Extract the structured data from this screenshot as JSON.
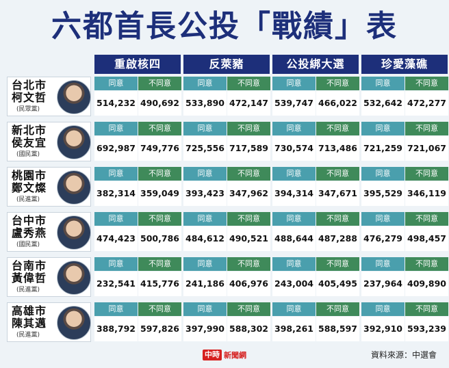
{
  "title": "六都首長公投「戰績」表",
  "topics": [
    "重啟核四",
    "反萊豬",
    "公投綁大選",
    "珍愛藻礁"
  ],
  "labels": {
    "agree": "同意",
    "disagree": "不同意"
  },
  "leaders": [
    {
      "city": "台北市",
      "name": "柯文哲",
      "party": "(民眾黨)",
      "avatar_icon": "portrait-icon"
    },
    {
      "city": "新北市",
      "name": "侯友宜",
      "party": "(國民黨)",
      "avatar_icon": "portrait-icon"
    },
    {
      "city": "桃園市",
      "name": "鄭文燦",
      "party": "(民進黨)",
      "avatar_icon": "portrait-icon"
    },
    {
      "city": "台中市",
      "name": "盧秀燕",
      "party": "(國民黨)",
      "avatar_icon": "portrait-icon"
    },
    {
      "city": "台南市",
      "name": "黃偉哲",
      "party": "(民進黨)",
      "avatar_icon": "portrait-icon"
    },
    {
      "city": "高雄市",
      "name": "陳其邁",
      "party": "(民進黨)",
      "avatar_icon": "portrait-icon"
    }
  ],
  "chart_data": {
    "type": "table",
    "title": "六都首長公投「戰績」表",
    "columns": [
      "重啟核四",
      "反萊豬",
      "公投綁大選",
      "珍愛藻礁"
    ],
    "subcolumns": [
      "同意",
      "不同意"
    ],
    "rows": [
      {
        "city": "台北市",
        "name": "柯文哲",
        "values": [
          "514,232",
          "490,692",
          "533,890",
          "472,147",
          "539,747",
          "466,022",
          "532,642",
          "472,277"
        ]
      },
      {
        "city": "新北市",
        "name": "侯友宜",
        "values": [
          "692,987",
          "749,776",
          "725,556",
          "717,589",
          "730,574",
          "713,486",
          "721,259",
          "721,067"
        ]
      },
      {
        "city": "桃園市",
        "name": "鄭文燦",
        "values": [
          "382,314",
          "359,049",
          "393,423",
          "347,962",
          "394,314",
          "347,671",
          "395,529",
          "346,119"
        ]
      },
      {
        "city": "台中市",
        "name": "盧秀燕",
        "values": [
          "474,423",
          "500,786",
          "484,612",
          "490,521",
          "488,644",
          "487,288",
          "476,279",
          "498,457"
        ]
      },
      {
        "city": "台南市",
        "name": "黃偉哲",
        "values": [
          "232,541",
          "415,776",
          "241,186",
          "406,976",
          "243,004",
          "405,495",
          "237,964",
          "409,890"
        ]
      },
      {
        "city": "高雄市",
        "name": "陳其邁",
        "values": [
          "388,792",
          "597,826",
          "397,990",
          "588,302",
          "398,261",
          "588,597",
          "392,910",
          "593,239"
        ]
      }
    ]
  },
  "footer": {
    "logo_mark": "中時",
    "logo_text": "新聞網",
    "source": "資料來源：中選會"
  },
  "colors": {
    "title": "#1d2f7a",
    "header_bg": "#1d2f7a",
    "agree_bg": "#4a9fad",
    "disagree_bg": "#3f8a5a",
    "logo": "#d6201f"
  }
}
